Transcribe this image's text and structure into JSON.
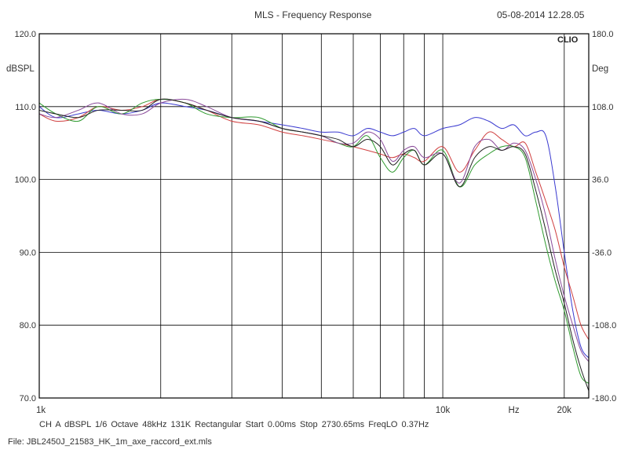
{
  "header": {
    "title": "MLS - Frequency Response",
    "timestamp": "05-08-2014 12.28.05"
  },
  "brand": "CLIO",
  "footer": {
    "settings": "CH A   dBSPL   1/6 Octave   48kHz   131K   Rectangular   Start 0.00ms   Stop 2730.65ms   FreqLO 0.37Hz",
    "file": "File: JBL2450J_21583_HK_1m_axe_raccord_ext.mls"
  },
  "chart_data": {
    "type": "line",
    "title": "MLS - Frequency Response",
    "ylabel": "dBSPL",
    "y2label": "Deg",
    "xscale": "log",
    "xlim": [
      1000,
      23000
    ],
    "ylim": [
      70,
      120
    ],
    "y2lim": [
      -180,
      180
    ],
    "x_tick_labels": [
      {
        "x": 1000,
        "label": "1k"
      },
      {
        "x": 10000,
        "label": "10k"
      },
      {
        "x": 15000,
        "label": "Hz"
      },
      {
        "x": 20000,
        "label": "20k"
      }
    ],
    "x_gridlines": [
      1000,
      2000,
      3000,
      4000,
      5000,
      6000,
      7000,
      8000,
      9000,
      10000,
      20000
    ],
    "y_ticks_left": [
      "120.0",
      "110.0",
      "100.0",
      "90.0",
      "80.0",
      "70.0"
    ],
    "y_ticks_right": [
      "180.0",
      "108.0",
      "36.0",
      "-36.0",
      "-108.0",
      "-180.0"
    ],
    "grid": true,
    "colors": {
      "grid": "#000000",
      "blue": "#3a3ad0",
      "red": "#d04040",
      "green": "#2e9a2e",
      "purple": "#8a4a9a",
      "black": "#222222"
    },
    "series": [
      {
        "color": "blue",
        "x": [
          1000,
          1100,
          1250,
          1400,
          1600,
          1800,
          2000,
          2300,
          2600,
          3000,
          3500,
          4000,
          4500,
          5000,
          5500,
          6000,
          6500,
          7000,
          7500,
          8000,
          8500,
          9000,
          10000,
          11000,
          12000,
          13000,
          14000,
          15000,
          16000,
          17000,
          18000,
          19000,
          20000,
          21000,
          22000,
          23000
        ],
        "y": [
          110.0,
          108.5,
          109.0,
          109.5,
          109.0,
          109.5,
          110.5,
          110.0,
          109.5,
          108.5,
          108.0,
          107.5,
          107.0,
          106.5,
          106.5,
          106.0,
          107.0,
          106.5,
          106.0,
          106.5,
          107.0,
          106.0,
          107.0,
          107.5,
          108.5,
          108.0,
          107.0,
          107.5,
          106.0,
          106.5,
          106.0,
          99.0,
          90.0,
          82.0,
          77.0,
          75.5
        ]
      },
      {
        "color": "red",
        "x": [
          1000,
          1100,
          1250,
          1400,
          1600,
          1800,
          2000,
          2300,
          2600,
          3000,
          3500,
          4000,
          4500,
          5000,
          5500,
          6000,
          6500,
          7000,
          7500,
          8000,
          8500,
          9000,
          10000,
          11000,
          12000,
          13000,
          14000,
          15000,
          16000,
          17000,
          18000,
          19000,
          20000,
          21000,
          22000,
          23000
        ],
        "y": [
          109.0,
          108.0,
          108.5,
          110.0,
          109.5,
          110.0,
          111.0,
          110.5,
          109.5,
          108.0,
          107.5,
          106.5,
          106.0,
          105.5,
          105.0,
          104.5,
          104.0,
          103.5,
          103.0,
          103.5,
          103.0,
          102.5,
          104.5,
          101.0,
          104.0,
          106.5,
          105.5,
          104.5,
          105.0,
          101.0,
          97.0,
          93.0,
          88.0,
          84.0,
          80.0,
          78.0
        ]
      },
      {
        "color": "green",
        "x": [
          1000,
          1100,
          1250,
          1400,
          1600,
          1800,
          2000,
          2300,
          2600,
          3000,
          3500,
          4000,
          4500,
          5000,
          5500,
          6000,
          6500,
          7000,
          7500,
          8000,
          8500,
          9000,
          10000,
          11000,
          12000,
          13000,
          14000,
          15000,
          16000,
          17000,
          18000,
          19000,
          20000,
          21000,
          22000,
          23000
        ],
        "y": [
          110.5,
          109.0,
          108.0,
          110.0,
          109.0,
          110.5,
          111.0,
          110.5,
          109.0,
          108.5,
          108.5,
          107.0,
          106.5,
          106.0,
          105.0,
          104.5,
          106.0,
          103.0,
          101.0,
          103.0,
          104.0,
          102.0,
          104.0,
          99.0,
          102.0,
          103.5,
          104.5,
          104.5,
          103.0,
          97.0,
          91.0,
          86.0,
          82.0,
          77.0,
          73.0,
          72.0
        ]
      },
      {
        "color": "purple",
        "x": [
          1000,
          1100,
          1250,
          1400,
          1600,
          1800,
          2000,
          2300,
          2600,
          3000,
          3500,
          4000,
          4500,
          5000,
          5500,
          6000,
          6500,
          7000,
          7500,
          8000,
          8500,
          9000,
          10000,
          11000,
          12000,
          13000,
          14000,
          15000,
          16000,
          17000,
          18000,
          19000,
          20000,
          21000,
          22000,
          23000
        ],
        "y": [
          109.0,
          108.5,
          109.5,
          110.5,
          109.0,
          109.0,
          110.5,
          111.0,
          110.0,
          108.5,
          108.0,
          107.0,
          106.5,
          106.0,
          105.0,
          105.0,
          106.5,
          105.5,
          102.5,
          104.0,
          104.5,
          103.0,
          103.5,
          99.5,
          104.5,
          105.5,
          104.0,
          105.0,
          104.0,
          100.0,
          95.0,
          89.0,
          84.0,
          80.0,
          76.5,
          75.0
        ]
      },
      {
        "color": "black",
        "x": [
          1000,
          1100,
          1250,
          1400,
          1600,
          1800,
          2000,
          2300,
          2600,
          3000,
          3500,
          4000,
          4500,
          5000,
          5500,
          6000,
          6500,
          7000,
          7500,
          8000,
          8500,
          9000,
          10000,
          11000,
          12000,
          13000,
          14000,
          15000,
          16000,
          17000,
          18000,
          19000,
          20000,
          21000,
          22000,
          23000
        ],
        "y": [
          109.5,
          109.0,
          108.5,
          109.5,
          109.5,
          109.5,
          111.0,
          110.5,
          109.5,
          108.5,
          108.0,
          107.0,
          106.5,
          106.0,
          105.5,
          104.5,
          105.5,
          104.5,
          102.0,
          103.5,
          104.0,
          102.0,
          103.5,
          99.0,
          103.0,
          104.5,
          104.0,
          104.5,
          103.5,
          98.5,
          93.0,
          87.5,
          83.0,
          78.0,
          74.0,
          71.0
        ]
      }
    ]
  }
}
